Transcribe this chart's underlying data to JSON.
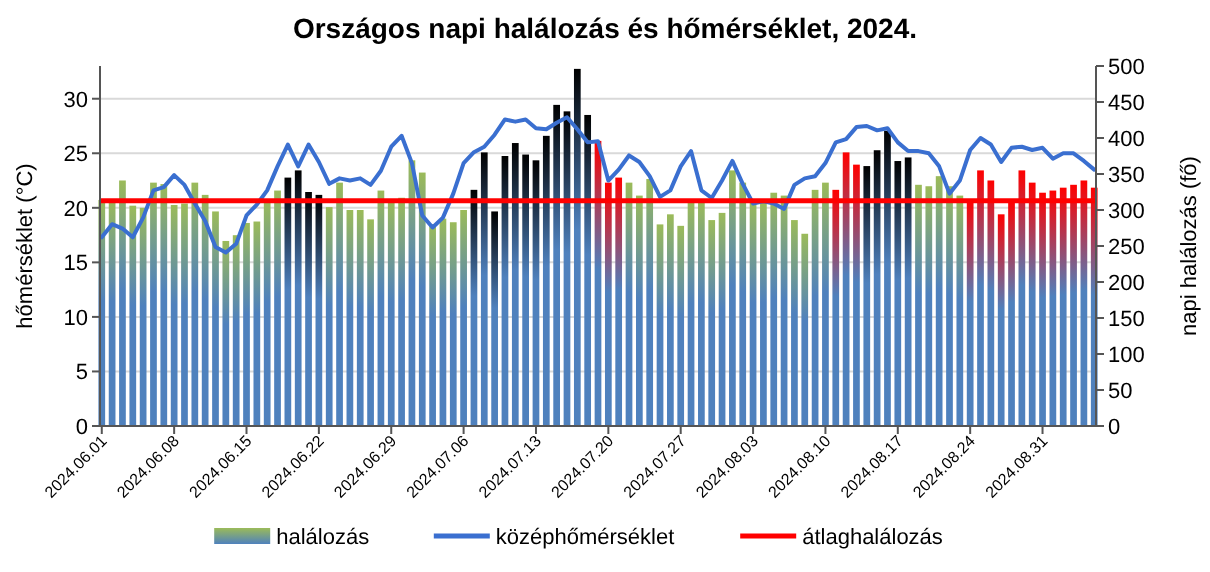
{
  "chart_data": {
    "type": "bar",
    "title": "Országos napi halálozás és hőmérséklet, 2024.",
    "ylabel": "hőmérséklet (°C)",
    "y2label": "napi halálozás (fő)",
    "categories": [
      "2024.06.01",
      null,
      null,
      null,
      null,
      null,
      null,
      "2024.06.08",
      null,
      null,
      null,
      null,
      null,
      null,
      "2024.06.15",
      null,
      null,
      null,
      null,
      null,
      null,
      "2024.06.22",
      null,
      null,
      null,
      null,
      null,
      null,
      "2024.06.29",
      null,
      null,
      null,
      null,
      null,
      null,
      "2024.07.06",
      null,
      null,
      null,
      null,
      null,
      null,
      "2024.07.13",
      null,
      null,
      null,
      null,
      null,
      null,
      "2024.07.20",
      null,
      null,
      null,
      null,
      null,
      null,
      "2024.07.27",
      null,
      null,
      null,
      null,
      null,
      null,
      "2024.08.03",
      null,
      null,
      null,
      null,
      null,
      null,
      "2024.08.10",
      null,
      null,
      null,
      null,
      null,
      null,
      "2024.08.17",
      null,
      null,
      null,
      null,
      null,
      null,
      "2024.08.24",
      null,
      null,
      null,
      null,
      null,
      null,
      "2024.08.31",
      null,
      null,
      null,
      null,
      null
    ],
    "series": [
      {
        "name": "halálozás",
        "axis": "y2",
        "color": "#4f81bd",
        "colors": [
          "#9bbb59",
          "#9bbb59",
          "#9bbb59",
          "#9bbb59",
          "#9bbb59",
          "#9bbb59",
          "#9bbb59",
          "#9bbb59",
          "#9bbb59",
          "#9bbb59",
          "#9bbb59",
          "#9bbb59",
          "#9bbb59",
          "#9bbb59",
          "#9bbb59",
          "#9bbb59",
          "#9bbb59",
          "#9bbb59",
          "#000000",
          "#000000",
          "#000000",
          "#000000",
          "#9bbb59",
          "#9bbb59",
          "#9bbb59",
          "#9bbb59",
          "#9bbb59",
          "#9bbb59",
          "#9bbb59",
          "#9bbb59",
          "#9bbb59",
          "#9bbb59",
          "#9bbb59",
          "#9bbb59",
          "#9bbb59",
          "#9bbb59",
          "#000000",
          "#000000",
          "#000000",
          "#000000",
          "#000000",
          "#000000",
          "#000000",
          "#000000",
          "#000000",
          "#000000",
          "#000000",
          "#000000",
          "#ff0000",
          "#ff0000",
          "#ff0000",
          "#9bbb59",
          "#9bbb59",
          "#9bbb59",
          "#9bbb59",
          "#9bbb59",
          "#9bbb59",
          "#9bbb59",
          "#9bbb59",
          "#9bbb59",
          "#9bbb59",
          "#9bbb59",
          "#9bbb59",
          "#9bbb59",
          "#9bbb59",
          "#9bbb59",
          "#9bbb59",
          "#9bbb59",
          "#9bbb59",
          "#9bbb59",
          "#9bbb59",
          "#ff0000",
          "#ff0000",
          "#ff0000",
          "#000000",
          "#000000",
          "#000000",
          "#000000",
          "#000000",
          "#9bbb59",
          "#9bbb59",
          "#9bbb59",
          "#9bbb59",
          "#9bbb59",
          "#ff0000",
          "#ff0000",
          "#ff0000",
          "#ff0000",
          "#ff0000",
          "#ff0000",
          "#ff0000",
          "#ff0000",
          "#ff0000",
          "#ff0000",
          "#ff0000",
          "#ff0000",
          "#ff0000"
        ],
        "values": [
          314,
          314,
          341,
          306,
          303,
          338,
          336,
          307,
          309,
          338,
          321,
          298,
          257,
          265,
          282,
          284,
          314,
          327,
          345,
          355,
          325,
          321,
          304,
          338,
          300,
          300,
          287,
          327,
          313,
          317,
          369,
          352,
          280,
          288,
          283,
          300,
          328,
          380,
          298,
          375,
          393,
          377,
          369,
          403,
          446,
          437,
          496,
          432,
          396,
          338,
          345,
          338,
          320,
          343,
          280,
          294,
          278,
          310,
          312,
          286,
          296,
          355,
          338,
          312,
          312,
          324,
          320,
          286,
          267,
          328,
          338,
          328,
          380,
          363,
          361,
          383,
          410,
          368,
          373,
          335,
          333,
          347,
          333,
          320,
          314,
          355,
          341,
          294,
          312,
          355,
          338,
          324,
          327,
          331,
          335,
          341,
          331
        ]
      },
      {
        "name": "középhőmérséklet",
        "type": "line",
        "color": "#3a6fd0",
        "values": [
          17.3,
          18.5,
          18.1,
          17.3,
          19.1,
          21.6,
          21.9,
          23.0,
          22.1,
          20.4,
          18.8,
          16.4,
          15.9,
          16.7,
          19.3,
          20.3,
          21.6,
          23.8,
          25.8,
          23.8,
          25.8,
          24.2,
          22.2,
          22.7,
          22.5,
          22.7,
          22.1,
          23.4,
          25.6,
          26.6,
          24.1,
          19.3,
          18.2,
          19.1,
          21.3,
          24.1,
          25.1,
          25.6,
          26.7,
          28.1,
          27.9,
          28.1,
          27.3,
          27.2,
          27.8,
          28.3,
          27.2,
          26.0,
          26.1,
          22.5,
          23.5,
          24.8,
          24.2,
          22.9,
          21.0,
          21.6,
          23.8,
          25.2,
          21.6,
          20.9,
          22.5,
          24.3,
          22.2,
          20.4,
          20.6,
          20.4,
          19.9,
          22.1,
          22.7,
          22.9,
          24.1,
          26.0,
          26.3,
          27.4,
          27.5,
          27.1,
          27.3,
          26.0,
          25.2,
          25.2,
          25.0,
          23.8,
          21.3,
          22.5,
          25.3,
          26.4,
          25.8,
          24.2,
          25.5,
          25.6,
          25.3,
          25.5,
          24.5,
          25.0,
          25.0,
          24.3,
          23.5
        ]
      }
    ],
    "ref_lines": [
      {
        "axis": "y2",
        "value": 313,
        "label": "átlaghalálozás",
        "color": "#ff0000"
      }
    ],
    "ylim": [
      0,
      33
    ],
    "yticks": [
      0,
      5,
      10,
      15,
      20,
      25,
      30
    ],
    "y2lim": [
      0,
      500
    ],
    "y2ticks": [
      0,
      50,
      100,
      150,
      200,
      250,
      300,
      350,
      400,
      450,
      500
    ],
    "grid": "y",
    "legend": "bottom"
  }
}
